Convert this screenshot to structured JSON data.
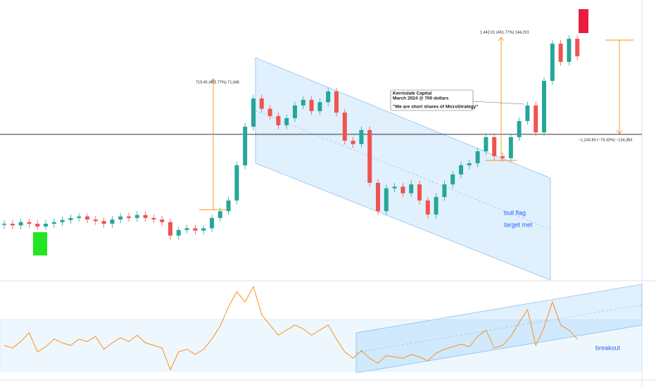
{
  "chart_data": [
    {
      "type": "candlestick",
      "log_scale": true,
      "ylim": [
        63,
        2790
      ],
      "hline": 452.6,
      "up_color": "#26a69a",
      "down_color": "#ef5350",
      "open": [
        133,
        135,
        132,
        138,
        135,
        130,
        135,
        138,
        142,
        146,
        149,
        143,
        140,
        135,
        143,
        149,
        146,
        152,
        146,
        143,
        138,
        115,
        124,
        127,
        123,
        127,
        146,
        160,
        185,
        298,
        502,
        736,
        640,
        580,
        512,
        564,
        669,
        722,
        620,
        700,
        809,
        608,
        415,
        397,
        480,
        235,
        160,
        218,
        223,
        204,
        230,
        185,
        153,
        194,
        230,
        263,
        298,
        306,
        360,
        436,
        337,
        328,
        436,
        542,
        669,
        465,
        934,
        1545,
        1208,
        1650
      ],
      "high": [
        142,
        142,
        145,
        145,
        142,
        142,
        145,
        149,
        153,
        156,
        156,
        150,
        147,
        150,
        156,
        156,
        160,
        160,
        153,
        150,
        145,
        130,
        133,
        133,
        133,
        153,
        168,
        194,
        313,
        527,
        773,
        773,
        672,
        609,
        592,
        702,
        758,
        758,
        735,
        849,
        849,
        638,
        436,
        504,
        504,
        247,
        229,
        234,
        234,
        242,
        242,
        194,
        204,
        242,
        276,
        313,
        321,
        378,
        458,
        458,
        354,
        458,
        569,
        702,
        702,
        981,
        1622,
        1622,
        1733,
        1733
      ],
      "low": [
        126,
        125,
        125,
        128,
        124,
        124,
        128,
        131,
        135,
        139,
        136,
        133,
        128,
        128,
        136,
        139,
        139,
        139,
        136,
        131,
        109,
        109,
        118,
        117,
        117,
        121,
        139,
        152,
        176,
        283,
        477,
        608,
        551,
        486,
        486,
        536,
        636,
        589,
        589,
        665,
        578,
        394,
        377,
        377,
        223,
        152,
        152,
        207,
        194,
        194,
        176,
        145,
        145,
        184,
        219,
        250,
        283,
        291,
        342,
        320,
        312,
        312,
        414,
        515,
        442,
        442,
        887,
        1148,
        1148,
        1238
      ],
      "close": [
        135,
        132,
        138,
        135,
        130,
        135,
        138,
        142,
        146,
        149,
        143,
        140,
        135,
        143,
        149,
        146,
        152,
        146,
        143,
        138,
        115,
        124,
        127,
        123,
        127,
        146,
        160,
        185,
        298,
        502,
        736,
        640,
        580,
        512,
        564,
        669,
        722,
        620,
        700,
        809,
        608,
        415,
        397,
        480,
        235,
        160,
        218,
        223,
        204,
        230,
        185,
        153,
        194,
        230,
        263,
        298,
        306,
        360,
        436,
        337,
        328,
        436,
        542,
        669,
        465,
        934,
        1545,
        1208,
        1650,
        1303
      ],
      "measure_labels": [
        "719.45 (451.77%) 71,945",
        "1,442.01 (451.77%) 144,201",
        "−1,243.83 (−73.32%) −124,383"
      ],
      "callout": [
        "Kerrisdale Capital",
        "March 2024 @ 700 dollars",
        "\"We are short shares of MicroStrategy\""
      ],
      "notes": [
        "bull flag",
        "target met"
      ]
    },
    {
      "type": "line",
      "color": "#f7931a",
      "ylim": [
        23,
        100
      ],
      "band": [
        30,
        70
      ],
      "values": [
        50,
        48,
        53,
        60,
        45,
        49,
        55,
        52,
        50,
        55,
        53,
        57,
        47,
        52,
        56,
        53,
        58,
        52,
        50,
        48,
        31,
        45,
        47,
        43,
        47,
        55,
        65,
        80,
        92,
        84,
        96,
        74,
        66,
        58,
        62,
        66,
        63,
        58,
        62,
        66,
        55,
        45,
        40,
        46,
        40,
        36,
        42,
        41,
        40,
        43,
        41,
        38,
        44,
        47,
        49,
        51,
        49,
        57,
        62,
        48,
        50,
        57,
        68,
        78,
        50,
        64,
        84,
        66,
        62,
        55
      ],
      "notes": [
        "breakout"
      ]
    }
  ]
}
